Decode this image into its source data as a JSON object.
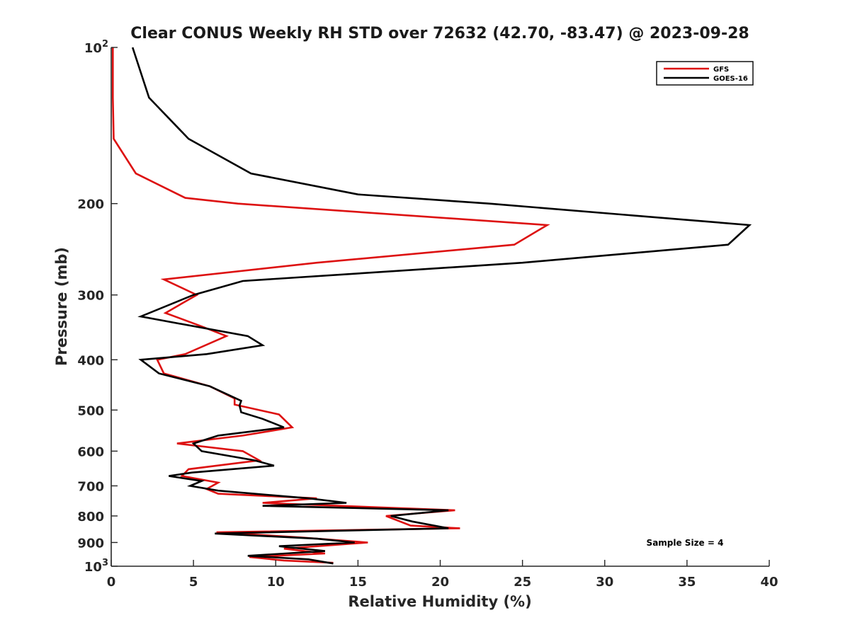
{
  "chart_data": {
    "type": "line",
    "title": "Clear CONUS Weekly RH STD over 72632 (42.70, -83.47) @ 2023-09-28",
    "xlabel": "Relative Humidity (%)",
    "ylabel": "Pressure (mb)",
    "xlim": [
      0,
      40
    ],
    "ylim": [
      1000,
      100
    ],
    "y_scale": "log",
    "y_reversed": true,
    "grid": false,
    "legend_position": "top-right",
    "annotation": "Sample Size = 4",
    "x_ticks": [
      {
        "v": 0,
        "label": "0"
      },
      {
        "v": 5,
        "label": "5"
      },
      {
        "v": 10,
        "label": "10"
      },
      {
        "v": 15,
        "label": "15"
      },
      {
        "v": 20,
        "label": "20"
      },
      {
        "v": 25,
        "label": "25"
      },
      {
        "v": 30,
        "label": "30"
      },
      {
        "v": 35,
        "label": "35"
      },
      {
        "v": 40,
        "label": "40"
      }
    ],
    "y_ticks": [
      {
        "v": 100,
        "base": "10",
        "sup": "2"
      },
      {
        "v": 200,
        "label": "200"
      },
      {
        "v": 300,
        "label": "300"
      },
      {
        "v": 400,
        "label": "400"
      },
      {
        "v": 500,
        "label": "500"
      },
      {
        "v": 600,
        "label": "600"
      },
      {
        "v": 700,
        "label": "700"
      },
      {
        "v": 800,
        "label": "800"
      },
      {
        "v": 900,
        "label": "900"
      },
      {
        "v": 1000,
        "base": "10",
        "sup": "3"
      }
    ],
    "series": [
      {
        "name": "GFS",
        "color": "#dd1111",
        "points": [
          [
            0.1,
            100
          ],
          [
            0.1,
            125
          ],
          [
            0.15,
            150
          ],
          [
            1.5,
            175
          ],
          [
            4.5,
            195
          ],
          [
            7.7,
            200
          ],
          [
            26.5,
            220
          ],
          [
            24.5,
            240
          ],
          [
            12.5,
            260
          ],
          [
            3.2,
            280
          ],
          [
            5.2,
            300
          ],
          [
            3.3,
            325
          ],
          [
            5.5,
            345
          ],
          [
            7.0,
            360
          ],
          [
            4.5,
            390
          ],
          [
            2.8,
            400
          ],
          [
            3.2,
            425
          ],
          [
            6.0,
            450
          ],
          [
            7.5,
            475
          ],
          [
            7.5,
            488
          ],
          [
            10.2,
            510
          ],
          [
            11.0,
            540
          ],
          [
            8.0,
            560
          ],
          [
            4.0,
            580
          ],
          [
            8.0,
            600
          ],
          [
            9.0,
            625
          ],
          [
            4.7,
            650
          ],
          [
            4.3,
            670
          ],
          [
            6.5,
            690
          ],
          [
            5.8,
            710
          ],
          [
            6.5,
            725
          ],
          [
            12.5,
            740
          ],
          [
            9.2,
            755
          ],
          [
            20.9,
            780
          ],
          [
            16.7,
            800
          ],
          [
            18.2,
            835
          ],
          [
            21.2,
            845
          ],
          [
            6.4,
            860
          ],
          [
            11.5,
            880
          ],
          [
            15.6,
            900
          ],
          [
            10.5,
            925
          ],
          [
            13.0,
            945
          ],
          [
            8.4,
            960
          ],
          [
            10.5,
            975
          ],
          [
            13.5,
            985
          ]
        ]
      },
      {
        "name": "GOES-16",
        "color": "#000000",
        "points": [
          [
            1.3,
            100
          ],
          [
            2.3,
            125
          ],
          [
            4.7,
            150
          ],
          [
            8.5,
            175
          ],
          [
            15.0,
            192
          ],
          [
            23.0,
            200
          ],
          [
            38.8,
            220
          ],
          [
            37.5,
            240
          ],
          [
            25.0,
            260
          ],
          [
            8.0,
            282
          ],
          [
            5.0,
            300
          ],
          [
            1.8,
            330
          ],
          [
            4.0,
            340
          ],
          [
            8.3,
            360
          ],
          [
            9.2,
            375
          ],
          [
            5.8,
            390
          ],
          [
            1.8,
            400
          ],
          [
            2.9,
            425
          ],
          [
            6.0,
            450
          ],
          [
            7.9,
            480
          ],
          [
            7.8,
            490
          ],
          [
            7.9,
            505
          ],
          [
            9.2,
            520
          ],
          [
            10.5,
            540
          ],
          [
            6.5,
            560
          ],
          [
            5.0,
            580
          ],
          [
            5.5,
            600
          ],
          [
            8.7,
            625
          ],
          [
            9.9,
            640
          ],
          [
            4.9,
            660
          ],
          [
            3.5,
            670
          ],
          [
            5.5,
            685
          ],
          [
            4.8,
            700
          ],
          [
            6.5,
            715
          ],
          [
            12.0,
            740
          ],
          [
            14.3,
            755
          ],
          [
            9.2,
            765
          ],
          [
            20.5,
            780
          ],
          [
            17.0,
            800
          ],
          [
            18.3,
            820
          ],
          [
            20.5,
            845
          ],
          [
            6.3,
            865
          ],
          [
            12.5,
            885
          ],
          [
            14.8,
            900
          ],
          [
            10.2,
            915
          ],
          [
            13.0,
            935
          ],
          [
            8.3,
            955
          ],
          [
            12.0,
            970
          ],
          [
            13.5,
            988
          ]
        ]
      }
    ]
  }
}
